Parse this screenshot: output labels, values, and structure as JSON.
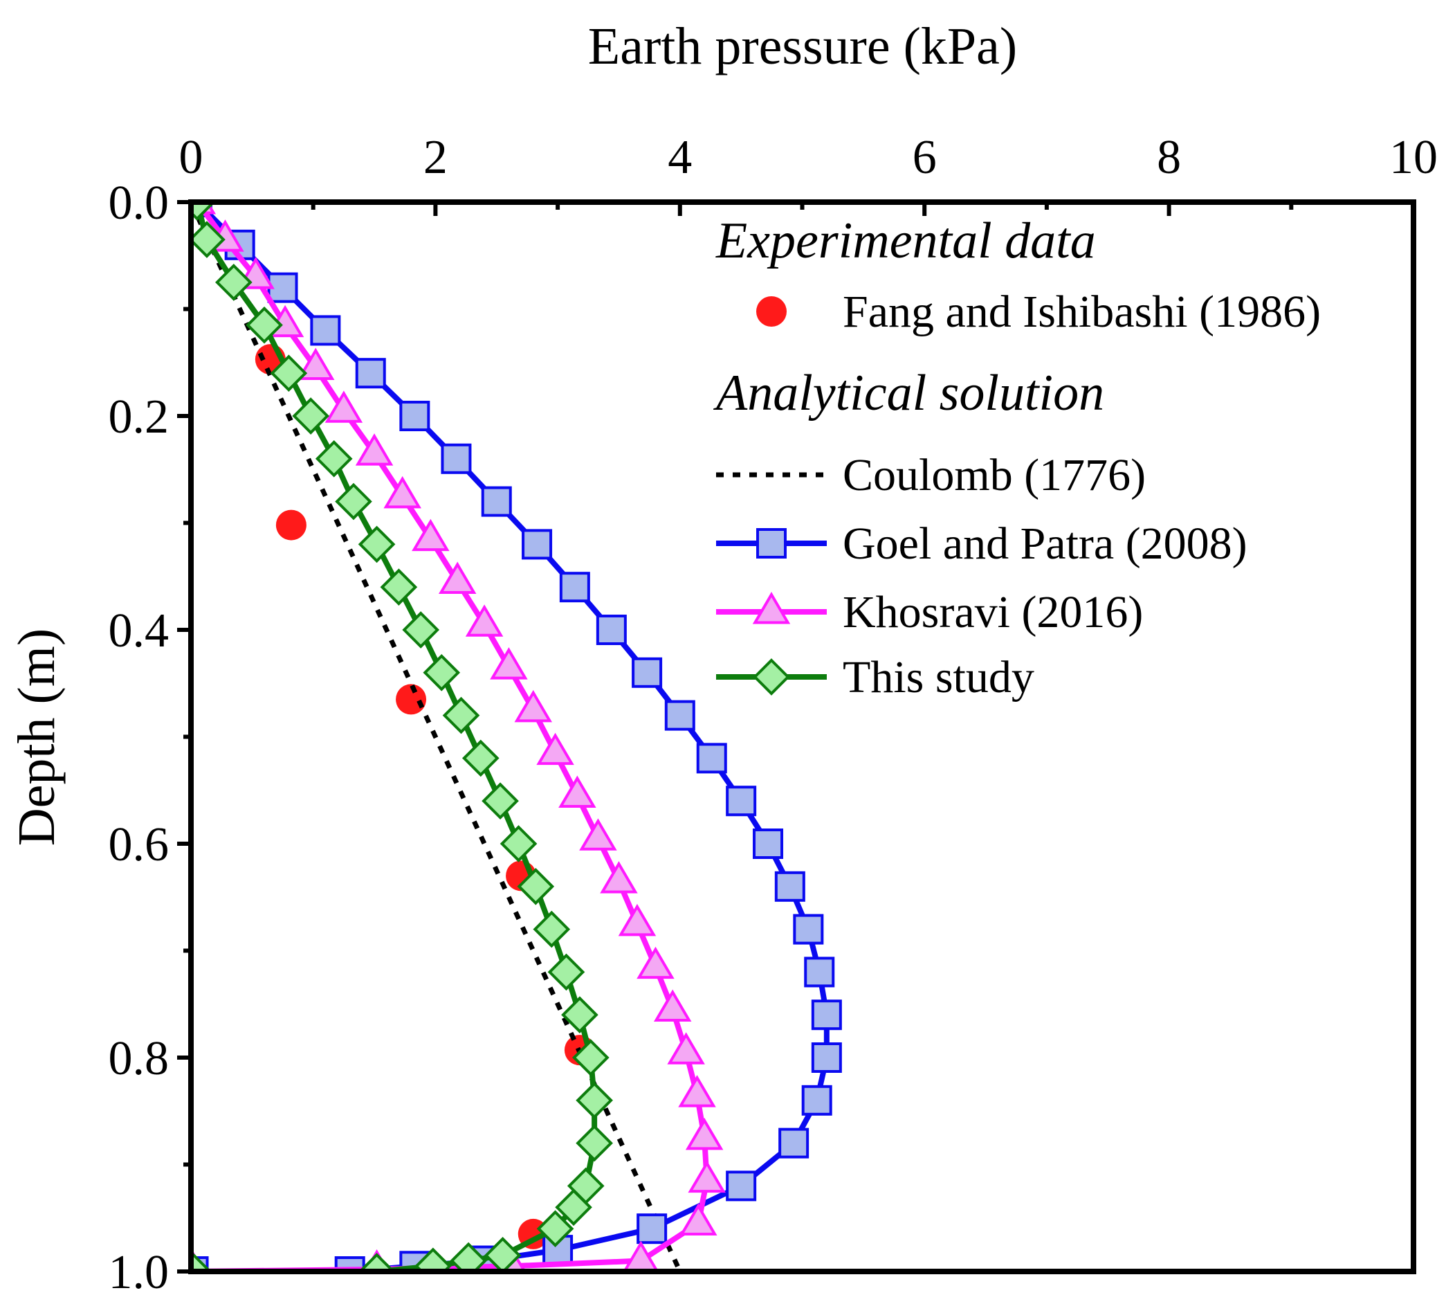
{
  "chart_data": {
    "type": "line",
    "xlabel": "Earth pressure (kPa)",
    "ylabel": "Depth (m)",
    "xlim": [
      0,
      10
    ],
    "ylim": [
      0,
      1.0
    ],
    "y_inverted": true,
    "x_axis_position": "top",
    "x_ticks": [
      "0",
      "2",
      "4",
      "6",
      "8",
      "10"
    ],
    "y_ticks": [
      "0.0",
      "0.2",
      "0.4",
      "0.6",
      "0.8",
      "1.0"
    ],
    "grid": false,
    "legend_position": "top-right",
    "legend_groups": [
      {
        "heading": "Experimental data",
        "series": [
          "fang"
        ]
      },
      {
        "heading": "Analytical solution",
        "series": [
          "coulomb",
          "goel",
          "khosravi",
          "this"
        ]
      }
    ],
    "series": [
      {
        "id": "fang",
        "name": "Fang and Ishibashi (1986)",
        "style": "markers",
        "marker": "circle",
        "color": "#ff1a1a",
        "points": [
          [
            0.65,
            0.147
          ],
          [
            0.82,
            0.302
          ],
          [
            1.8,
            0.465
          ],
          [
            2.7,
            0.63
          ],
          [
            3.18,
            0.793
          ],
          [
            2.8,
            0.965
          ]
        ]
      },
      {
        "id": "coulomb",
        "name": "Coulomb (1776)",
        "style": "dotted",
        "marker": "none",
        "color": "#000000",
        "points": [
          [
            0,
            0
          ],
          [
            4.0,
            1.0
          ]
        ]
      },
      {
        "id": "goel",
        "name": "Goel and Patra (2008)",
        "style": "line",
        "marker": "square",
        "color": "#0a0af0",
        "marker_fill": "#a8b8ee",
        "points": [
          [
            0.05,
            0
          ],
          [
            0.4,
            0.04
          ],
          [
            0.75,
            0.08
          ],
          [
            1.1,
            0.12
          ],
          [
            1.47,
            0.16
          ],
          [
            1.83,
            0.2
          ],
          [
            2.17,
            0.24
          ],
          [
            2.5,
            0.28
          ],
          [
            2.83,
            0.32
          ],
          [
            3.14,
            0.36
          ],
          [
            3.44,
            0.4
          ],
          [
            3.73,
            0.44
          ],
          [
            4.0,
            0.48
          ],
          [
            4.26,
            0.52
          ],
          [
            4.5,
            0.56
          ],
          [
            4.72,
            0.6
          ],
          [
            4.9,
            0.64
          ],
          [
            5.05,
            0.68
          ],
          [
            5.14,
            0.72
          ],
          [
            5.2,
            0.76
          ],
          [
            5.2,
            0.8
          ],
          [
            5.12,
            0.84
          ],
          [
            4.93,
            0.88
          ],
          [
            4.5,
            0.92
          ],
          [
            3.77,
            0.96
          ],
          [
            3.0,
            0.98
          ],
          [
            2.4,
            0.99
          ],
          [
            1.83,
            0.995
          ],
          [
            1.3,
            1.0
          ],
          [
            0.02,
            1.0
          ]
        ]
      },
      {
        "id": "khosravi",
        "name": "Khosravi (2016)",
        "style": "line",
        "marker": "triangle",
        "color": "#ff1aff",
        "marker_fill": "#f4a8f4",
        "points": [
          [
            0.05,
            0
          ],
          [
            0.28,
            0.035
          ],
          [
            0.53,
            0.07
          ],
          [
            0.77,
            0.115
          ],
          [
            1.02,
            0.155
          ],
          [
            1.25,
            0.195
          ],
          [
            1.5,
            0.235
          ],
          [
            1.73,
            0.275
          ],
          [
            1.96,
            0.315
          ],
          [
            2.18,
            0.355
          ],
          [
            2.4,
            0.395
          ],
          [
            2.6,
            0.435
          ],
          [
            2.8,
            0.475
          ],
          [
            2.98,
            0.515
          ],
          [
            3.16,
            0.555
          ],
          [
            3.33,
            0.595
          ],
          [
            3.5,
            0.635
          ],
          [
            3.65,
            0.675
          ],
          [
            3.8,
            0.715
          ],
          [
            3.94,
            0.755
          ],
          [
            4.05,
            0.795
          ],
          [
            4.14,
            0.835
          ],
          [
            4.2,
            0.875
          ],
          [
            4.22,
            0.915
          ],
          [
            4.15,
            0.955
          ],
          [
            3.68,
            0.99
          ],
          [
            2.62,
            0.995
          ],
          [
            1.52,
            0.998
          ],
          [
            0.02,
            1.0
          ]
        ]
      },
      {
        "id": "this",
        "name": "This study",
        "style": "line",
        "marker": "diamond",
        "color": "#0d7d0d",
        "marker_fill": "#a4f0a4",
        "points": [
          [
            0.05,
            0
          ],
          [
            0.13,
            0.035
          ],
          [
            0.35,
            0.075
          ],
          [
            0.6,
            0.115
          ],
          [
            0.8,
            0.16
          ],
          [
            0.98,
            0.2
          ],
          [
            1.17,
            0.24
          ],
          [
            1.33,
            0.28
          ],
          [
            1.52,
            0.32
          ],
          [
            1.7,
            0.36
          ],
          [
            1.88,
            0.4
          ],
          [
            2.05,
            0.44
          ],
          [
            2.21,
            0.48
          ],
          [
            2.37,
            0.52
          ],
          [
            2.53,
            0.56
          ],
          [
            2.68,
            0.6
          ],
          [
            2.82,
            0.64
          ],
          [
            2.95,
            0.68
          ],
          [
            3.07,
            0.72
          ],
          [
            3.18,
            0.76
          ],
          [
            3.27,
            0.8
          ],
          [
            3.3,
            0.84
          ],
          [
            3.3,
            0.88
          ],
          [
            3.23,
            0.92
          ],
          [
            3.13,
            0.94
          ],
          [
            2.98,
            0.96
          ],
          [
            2.55,
            0.985
          ],
          [
            2.27,
            0.99
          ],
          [
            1.98,
            0.995
          ],
          [
            1.52,
            1.0
          ],
          [
            0.02,
            1.0
          ]
        ]
      }
    ]
  }
}
